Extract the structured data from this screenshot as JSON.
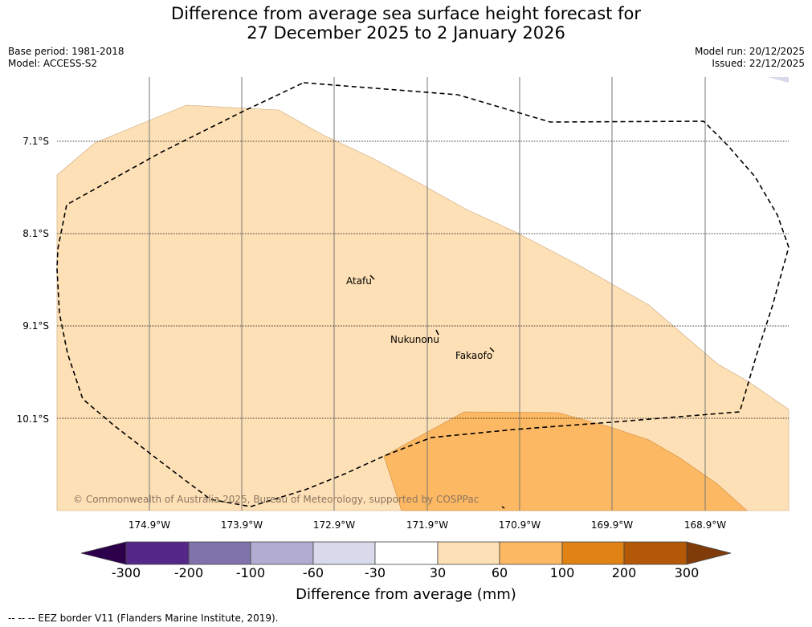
{
  "title": {
    "line1": "Difference from average sea surface height forecast for",
    "line2": "27 December 2025 to 2 January 2026"
  },
  "meta_left": {
    "base_period": "Base period: 1981-2018",
    "model": "Model: ACCESS-S2"
  },
  "meta_right": {
    "model_run": "Model run: 20/12/2025",
    "issued": "Issued: 22/12/2025"
  },
  "latitudes": [
    "7.1°S",
    "8.1°S",
    "9.1°S",
    "10.1°S"
  ],
  "longitudes": [
    "174.9°W",
    "173.9°W",
    "172.9°W",
    "171.9°W",
    "170.9°W",
    "169.9°W",
    "168.9°W"
  ],
  "places": [
    "Atafu",
    "Nukunonu",
    "Fakaofo"
  ],
  "copyright": "© Commonwealth of Australia 2025, Bureau of Meteorology, supported by COSPPac",
  "colorbar": {
    "ticks": [
      "-300",
      "-200",
      "-100",
      "-60",
      "-30",
      "30",
      "60",
      "100",
      "200",
      "300"
    ],
    "colors": [
      "#2d004b",
      "#542788",
      "#8073ac",
      "#b2abd2",
      "#d8daeb",
      "#ffffff",
      "#fee0b6",
      "#fdb863",
      "#e08214",
      "#b35806",
      "#7f3b08"
    ],
    "label": "Difference from average (mm)"
  },
  "legend": {
    "eez_note": "--  --  -- EEZ border V11 (Flanders Marine Institute, 2019)."
  }
}
